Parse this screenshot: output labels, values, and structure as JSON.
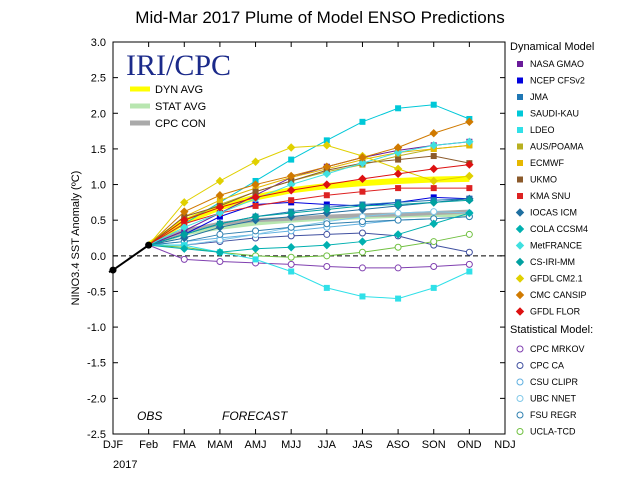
{
  "chart_data": {
    "type": "line",
    "title": "Mid-Mar 2017 Plume of Model ENSO Predictions",
    "ylabel": "NINO3.4 SST Anomaly (ºC)",
    "year_label": "2017",
    "logo": "IRI/CPC",
    "obs_label": "OBS",
    "forecast_label": "FORECAST",
    "ylim": [
      -2.5,
      3.0
    ],
    "yticks": [
      "3.0",
      "2.5",
      "2.0",
      "1.5",
      "1.0",
      "0.5",
      "0.0",
      "-0.5",
      "-1.0",
      "-1.5",
      "-2.0",
      "-2.5"
    ],
    "categories": [
      "DJF",
      "Feb",
      "FMA",
      "MAM",
      "AMJ",
      "MJJ",
      "JJA",
      "JAS",
      "ASO",
      "SON",
      "OND",
      "NDJ"
    ],
    "observed": [
      -0.2,
      0.15
    ],
    "averages": [
      {
        "name": "DYN AVG",
        "color": "#ffff00",
        "values": [
          0.48,
          0.68,
          0.82,
          0.92,
          0.98,
          1.02,
          1.05,
          1.07,
          1.08
        ]
      },
      {
        "name": "STAT AVG",
        "color": "#b8e6b0",
        "values": [
          0.32,
          0.4,
          0.46,
          0.5,
          0.53,
          0.55,
          0.57,
          0.58,
          0.58
        ]
      },
      {
        "name": "CPC CON",
        "color": "#aaaaaa",
        "values": [
          0.35,
          0.45,
          0.5,
          0.52,
          0.55,
          0.57,
          0.58,
          0.6,
          0.62
        ]
      }
    ],
    "dynamical_header": "Dynamical Model",
    "statistical_header": "Statistical Model:",
    "dynamical": [
      {
        "name": "NASA GMAO",
        "color": "#6a1b9a",
        "marker": "square",
        "values": [
          0.35,
          0.6,
          0.85,
          1.1,
          1.25,
          1.38,
          1.48,
          1.55,
          1.6
        ]
      },
      {
        "name": "NCEP CFSv2",
        "color": "#0000dd",
        "marker": "square",
        "values": [
          0.3,
          0.55,
          0.72,
          0.75,
          0.72,
          0.7,
          0.75,
          0.82,
          0.8
        ]
      },
      {
        "name": "JMA",
        "color": "#1f77b4",
        "marker": "square",
        "values": [
          0.3,
          0.45,
          0.55,
          0.62,
          0.68,
          0.72,
          0.75,
          0.78,
          0.8
        ]
      },
      {
        "name": "SAUDI-KAU",
        "color": "#00c8d8",
        "marker": "square",
        "values": [
          0.45,
          0.75,
          1.05,
          1.35,
          1.62,
          1.88,
          2.07,
          2.12,
          1.92
        ]
      },
      {
        "name": "LDEO",
        "color": "#30e0e8",
        "marker": "square",
        "values": [
          0.15,
          0.05,
          -0.05,
          -0.22,
          -0.45,
          -0.57,
          -0.6,
          -0.45,
          -0.22
        ]
      },
      {
        "name": "AUS/POAMA",
        "color": "#b8b020",
        "marker": "square",
        "values": [
          0.5,
          0.72,
          0.9,
          1.05,
          1.18,
          1.28,
          1.4,
          1.5,
          1.55
        ]
      },
      {
        "name": "ECMWF",
        "color": "#e6b800",
        "marker": "square",
        "values": [
          0.55,
          0.78,
          0.95,
          1.1,
          1.22,
          1.35,
          1.45,
          1.5,
          1.55
        ]
      },
      {
        "name": "UKMO",
        "color": "#8b5a2b",
        "marker": "square",
        "values": [
          0.55,
          0.7,
          0.9,
          1.05,
          1.2,
          1.3,
          1.35,
          1.4,
          1.3
        ]
      },
      {
        "name": "KMA SNU",
        "color": "#dd2222",
        "marker": "square",
        "values": [
          0.45,
          0.6,
          0.7,
          0.78,
          0.85,
          0.9,
          0.95,
          0.95,
          0.95
        ]
      },
      {
        "name": "IOCAS ICM",
        "color": "#1f6fa0",
        "marker": "diamond",
        "values": [
          0.25,
          0.4,
          0.5,
          0.55,
          0.6,
          0.65,
          0.7,
          0.75,
          0.8
        ]
      },
      {
        "name": "COLA CCSM4",
        "color": "#00b0b0",
        "marker": "diamond",
        "values": [
          0.1,
          0.05,
          0.1,
          0.12,
          0.15,
          0.2,
          0.3,
          0.45,
          0.6
        ]
      },
      {
        "name": "MetFRANCE",
        "color": "#40e0e0",
        "marker": "diamond",
        "values": [
          0.4,
          0.6,
          0.8,
          1.0,
          1.15,
          1.3,
          1.45,
          1.55,
          1.6
        ]
      },
      {
        "name": "CS-IRI-MM",
        "color": "#00a0a0",
        "marker": "diamond",
        "values": [
          0.3,
          0.45,
          0.55,
          0.6,
          0.65,
          0.7,
          0.72,
          0.75,
          0.78
        ]
      },
      {
        "name": "GFDL CM2.1",
        "color": "#e0d000",
        "marker": "diamond",
        "values": [
          0.75,
          1.05,
          1.32,
          1.52,
          1.55,
          1.4,
          1.22,
          1.05,
          1.12
        ]
      },
      {
        "name": "CMC CANSIP",
        "color": "#d07a00",
        "marker": "diamond",
        "values": [
          0.62,
          0.85,
          1.0,
          1.12,
          1.25,
          1.38,
          1.52,
          1.72,
          1.88
        ]
      },
      {
        "name": "GFDL FLOR",
        "color": "#dd1111",
        "marker": "diamond",
        "values": [
          0.5,
          0.68,
          0.82,
          0.92,
          1.0,
          1.08,
          1.15,
          1.22,
          1.28
        ]
      }
    ],
    "statistical": [
      {
        "name": "CPC MRKOV",
        "color": "#8040b0",
        "values": [
          -0.05,
          -0.08,
          -0.1,
          -0.12,
          -0.15,
          -0.17,
          -0.17,
          -0.15,
          -0.12
        ]
      },
      {
        "name": "CPC CA",
        "color": "#4050a0",
        "values": [
          0.15,
          0.2,
          0.25,
          0.28,
          0.3,
          0.32,
          0.28,
          0.15,
          0.05
        ]
      },
      {
        "name": "CSU CLIPR",
        "color": "#60b0e0",
        "values": [
          0.2,
          0.25,
          0.3,
          0.35,
          0.4,
          0.45,
          0.5,
          0.52,
          0.55
        ]
      },
      {
        "name": "UBC NNET",
        "color": "#80c8e8",
        "values": [
          0.15,
          0.22,
          0.3,
          0.4,
          0.48,
          0.55,
          0.6,
          0.62,
          0.6
        ]
      },
      {
        "name": "FSU REGR",
        "color": "#3080b0",
        "values": [
          0.2,
          0.3,
          0.35,
          0.4,
          0.45,
          0.48,
          0.5,
          0.52,
          0.55
        ]
      },
      {
        "name": "UCLA-TCD",
        "color": "#70c040",
        "values": [
          0.12,
          0.05,
          0.0,
          -0.02,
          0.0,
          0.05,
          0.12,
          0.2,
          0.3
        ]
      }
    ]
  }
}
